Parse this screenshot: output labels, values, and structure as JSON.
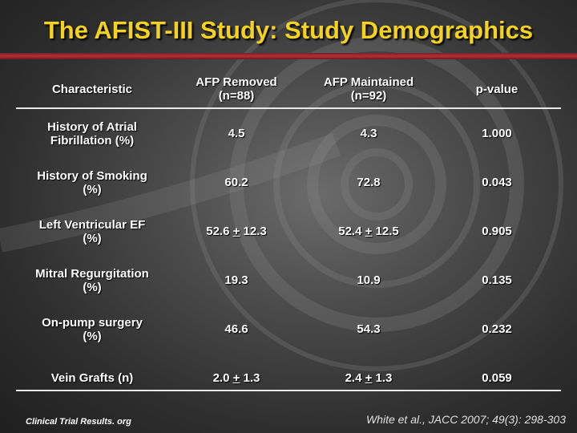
{
  "slide": {
    "title": "The AFIST-III Study: Study Demographics",
    "colors": {
      "title": "#f5d21e",
      "title_bar": "#b03038",
      "text": "#ffffff"
    }
  },
  "table": {
    "headers": [
      "Characteristic",
      "AFP Removed\n(n=88)",
      "AFP Maintained\n(n=92)",
      "p-value"
    ],
    "rows": [
      {
        "label": "History of Atrial\nFibrillation (%)",
        "removed": "4.5",
        "maintained": "4.3",
        "p": "1.000"
      },
      {
        "label": "History of Smoking\n(%)",
        "removed": "60.2",
        "maintained": "72.8",
        "p": "0.043"
      },
      {
        "label": "Left Ventricular EF\n(%)",
        "removed_mean": "52.6",
        "removed_pm": "+",
        "removed_sd": "12.3",
        "maintained_mean": "52.4",
        "maintained_pm": "+",
        "maintained_sd": "12.5",
        "p": "0.905"
      },
      {
        "label": "Mitral Regurgitation\n(%)",
        "removed": "19.3",
        "maintained": "10.9",
        "p": "0.135"
      },
      {
        "label": "On-pump surgery\n(%)",
        "removed": "46.6",
        "maintained": "54.3",
        "p": "0.232"
      },
      {
        "label": "Vein Grafts (n)",
        "removed_mean": "2.0",
        "removed_pm": "+",
        "removed_sd": "1.3",
        "maintained_mean": "2.4",
        "maintained_pm": "+",
        "maintained_sd": "1.3",
        "p": "0.059"
      }
    ]
  },
  "footer": {
    "left": "Clinical Trial Results. org",
    "right": "White et al., JACC 2007; 49(3): 298-303"
  }
}
